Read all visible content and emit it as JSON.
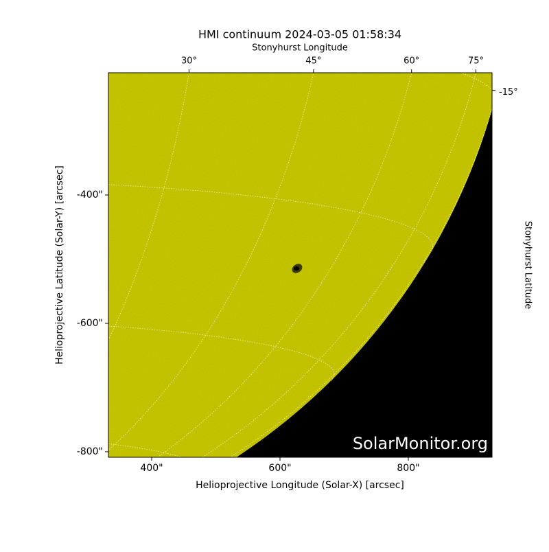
{
  "chart_data": {
    "type": "image",
    "title": "HMI continuum 2024-03-05 01:58:34",
    "xlabel": "Helioprojective Longitude (Solar-X) [arcsec]",
    "ylabel": "Helioprojective Latitude (Solar-Y) [arcsec]",
    "top_label": "Stonyhurst Longitude",
    "right_label": "Stonyhurst Latitude",
    "watermark": "SolarMonitor.org",
    "xlim": [
      332.6,
      930.5
    ],
    "ylim": [
      -808.6,
      -209.6
    ],
    "xticks": [
      {
        "value": 400,
        "label": "400\""
      },
      {
        "value": 600,
        "label": "600\""
      },
      {
        "value": 800,
        "label": "800\""
      }
    ],
    "yticks": [
      {
        "value": -400,
        "label": "-400\""
      },
      {
        "value": -600,
        "label": "-600\""
      },
      {
        "value": -800,
        "label": "-800\""
      }
    ],
    "lon_ticks": [
      {
        "value": 30,
        "label": "30°"
      },
      {
        "value": 45,
        "label": "45°"
      },
      {
        "value": 60,
        "label": "60°"
      },
      {
        "value": 75,
        "label": "75°"
      }
    ],
    "lat_ticks": [
      {
        "value": -15,
        "label": "-15°"
      }
    ],
    "disk_color": "#c8c800",
    "background_color": "#000000",
    "grid": true
  }
}
